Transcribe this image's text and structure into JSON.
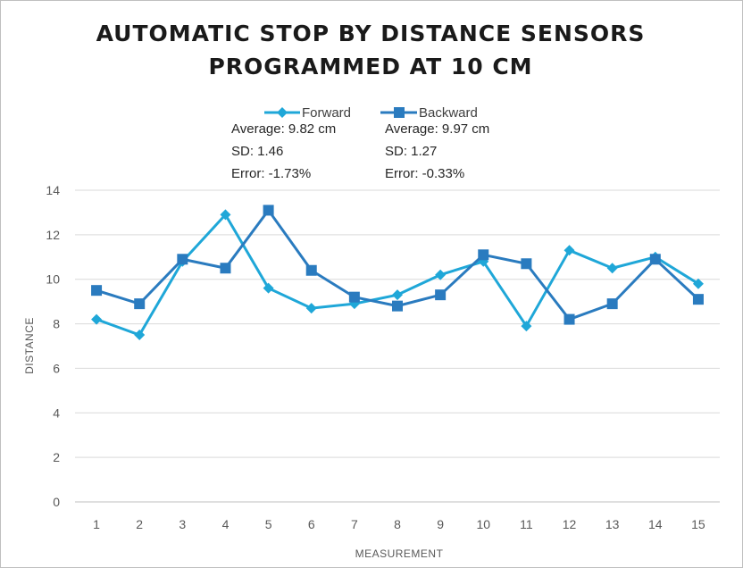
{
  "chart_data": {
    "type": "line",
    "title": [
      "AUTOMATIC STOP BY DISTANCE SENSORS",
      "PROGRAMMED AT 10 CM"
    ],
    "xlabel": "MEASUREMENT",
    "ylabel": "DISTANCE",
    "ylim": [
      0,
      14
    ],
    "ytick_step": 2,
    "yticks": [
      "0",
      "2",
      "4",
      "6",
      "8",
      "10",
      "12",
      "14"
    ],
    "grid": true,
    "categories": [
      "1",
      "2",
      "3",
      "4",
      "5",
      "6",
      "7",
      "8",
      "9",
      "10",
      "11",
      "12",
      "13",
      "14",
      "15"
    ],
    "series": [
      {
        "name": "Forward",
        "color": "#1fa7d8",
        "marker": "diamond",
        "values": [
          8.2,
          7.5,
          10.8,
          12.9,
          9.6,
          8.7,
          8.9,
          9.3,
          10.2,
          10.8,
          7.9,
          11.3,
          10.5,
          11.0,
          9.8
        ],
        "stats": [
          "Average: 9.82 cm",
          "SD: 1.46",
          "Error: -1.73%"
        ]
      },
      {
        "name": "Backward",
        "color": "#2a7bbf",
        "marker": "square",
        "values": [
          9.5,
          8.9,
          10.9,
          10.5,
          13.1,
          10.4,
          9.2,
          8.8,
          9.3,
          11.1,
          10.7,
          8.2,
          8.9,
          10.9,
          9.1
        ],
        "stats": [
          "Average: 9.97 cm",
          "SD: 1.27",
          "Error: -0.33%"
        ]
      }
    ],
    "legend_position": "top"
  }
}
